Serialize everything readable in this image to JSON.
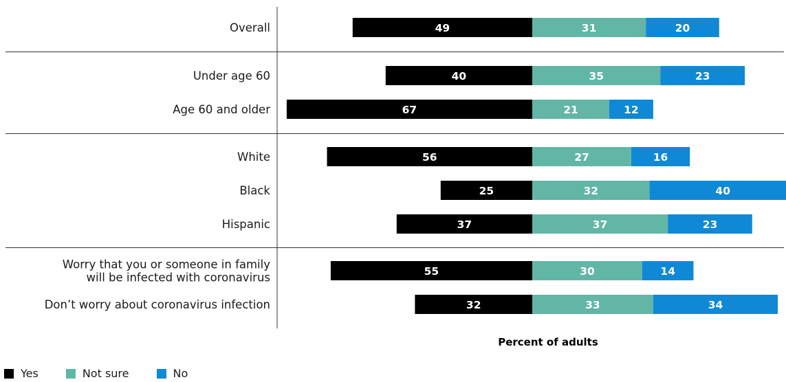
{
  "chart_data": {
    "type": "bar",
    "orientation": "horizontal",
    "stacked": "diverging",
    "xlabel": "Percent of adults",
    "categories": [
      "Overall",
      "Under age 60",
      "Age 60 and older",
      "White",
      "Black",
      "Hispanic",
      "Worry that you or someone in family will be infected with coronavirus",
      "Don’t worry about coronavirus infection"
    ],
    "category_label_lines": [
      [
        "Overall"
      ],
      [
        "Under age 60"
      ],
      [
        "Age 60 and older"
      ],
      [
        "White"
      ],
      [
        "Black"
      ],
      [
        "Hispanic"
      ],
      [
        "Worry that you or someone in family",
        "will be infected with coronavirus"
      ],
      [
        "Don’t worry about coronavirus infection"
      ]
    ],
    "groups": [
      [
        0
      ],
      [
        1,
        2
      ],
      [
        3,
        4,
        5
      ],
      [
        6,
        7
      ]
    ],
    "series": [
      {
        "name": "Yes",
        "color": "#000000",
        "values": [
          49,
          40,
          67,
          56,
          25,
          37,
          55,
          32
        ]
      },
      {
        "name": "Not sure",
        "color": "#62b6a6",
        "values": [
          31,
          35,
          21,
          27,
          32,
          37,
          30,
          33
        ]
      },
      {
        "name": "No",
        "color": "#0f89d6",
        "values": [
          20,
          23,
          12,
          16,
          40,
          23,
          14,
          34
        ]
      }
    ],
    "legend_position": "bottom-left",
    "grid": false
  }
}
